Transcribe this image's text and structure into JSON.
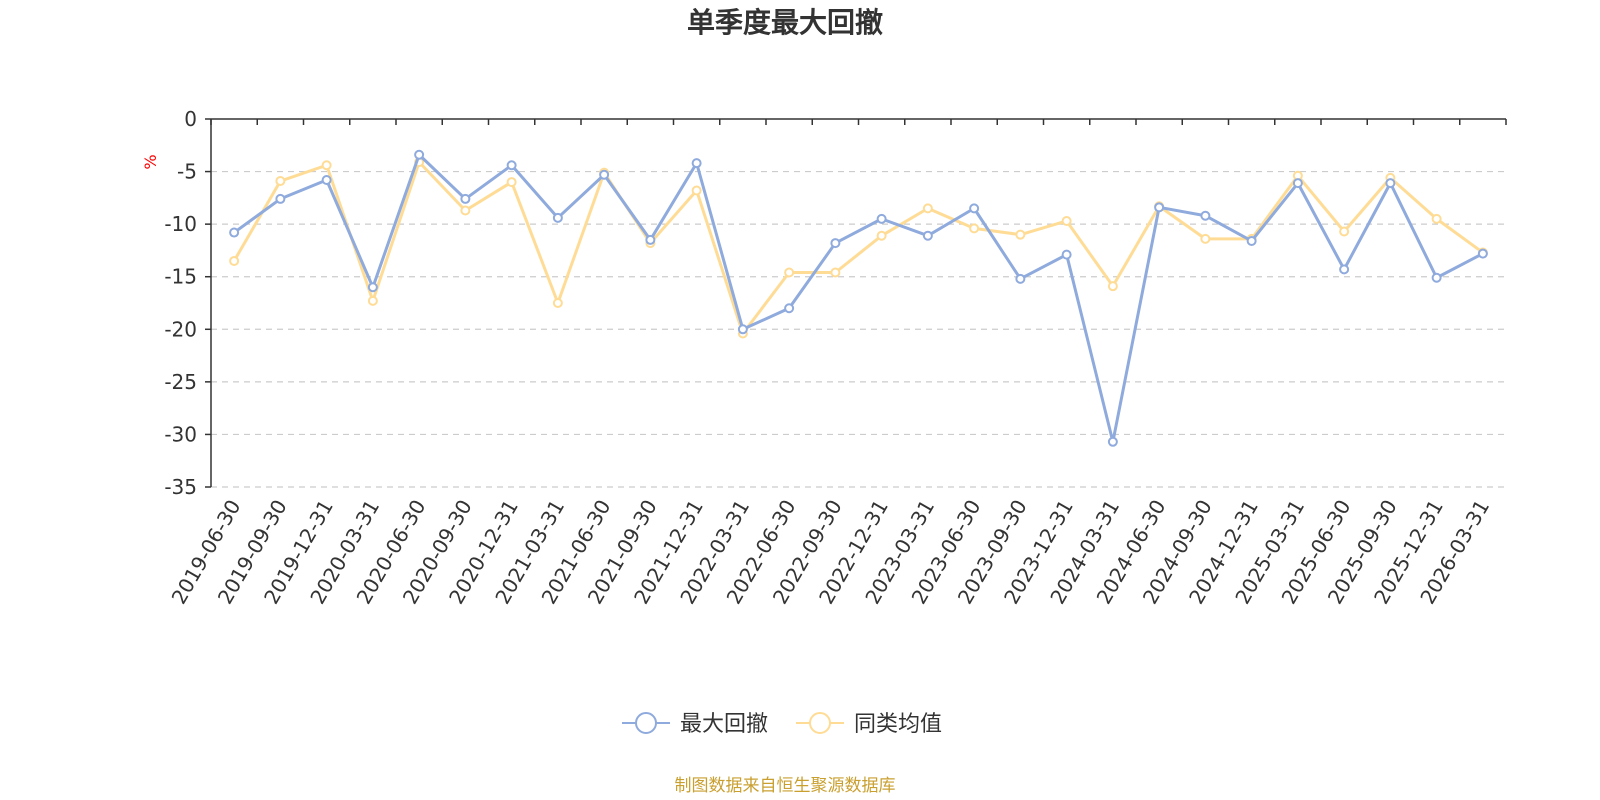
{
  "chart_data": {
    "type": "line",
    "title": "单季度最大回撤",
    "ylabel": "%",
    "ylim": [
      -35,
      0
    ],
    "yticks": [
      0,
      -5,
      -10,
      -15,
      -20,
      -25,
      -30,
      -35
    ],
    "grid": true,
    "legend_position": "bottom-center",
    "categories": [
      "2019-06-30",
      "2019-09-30",
      "2019-12-31",
      "2020-03-31",
      "2020-06-30",
      "2020-09-30",
      "2020-12-31",
      "2021-03-31",
      "2021-06-30",
      "2021-09-30",
      "2021-12-31",
      "2022-03-31",
      "2022-06-30",
      "2022-09-30",
      "2022-12-31",
      "2023-03-31",
      "2023-06-30",
      "2023-09-30",
      "2023-12-31",
      "2024-03-31",
      "2024-06-30",
      "2024-09-30",
      "2024-12-31",
      "2025-03-31",
      "2025-06-30",
      "2025-09-30",
      "2025-12-31",
      "2026-03-31"
    ],
    "series": [
      {
        "name": "最大回撤",
        "color": "#8FAADC",
        "values": [
          -10.8,
          -7.6,
          -5.8,
          -16.0,
          -3.4,
          -7.6,
          -4.4,
          -9.4,
          -5.3,
          -11.5,
          -4.2,
          -20.0,
          -18.0,
          -11.8,
          -9.5,
          -11.1,
          -8.5,
          -15.2,
          -12.9,
          -30.7,
          -8.4,
          -9.2,
          -11.6,
          -6.1,
          -14.3,
          -6.1,
          -15.1,
          -12.8
        ]
      },
      {
        "name": "同类均值",
        "color": "#FFDC96",
        "values": [
          -13.5,
          -5.9,
          -4.4,
          -17.3,
          -4.1,
          -8.7,
          -6.0,
          -17.5,
          -5.1,
          -11.8,
          -6.8,
          -20.4,
          -14.6,
          -14.6,
          -11.1,
          -8.5,
          -10.4,
          -11.0,
          -9.7,
          -15.9,
          -8.3,
          -11.4,
          -11.4,
          -5.4,
          -10.7,
          -5.6,
          -9.5,
          -12.7
        ]
      }
    ],
    "source_note": "制图数据来自恒生聚源数据库"
  },
  "colors": {
    "axis": "#333333",
    "grid": "#CCCCCC",
    "unit": "#FF0000",
    "source": "#C9A030"
  }
}
